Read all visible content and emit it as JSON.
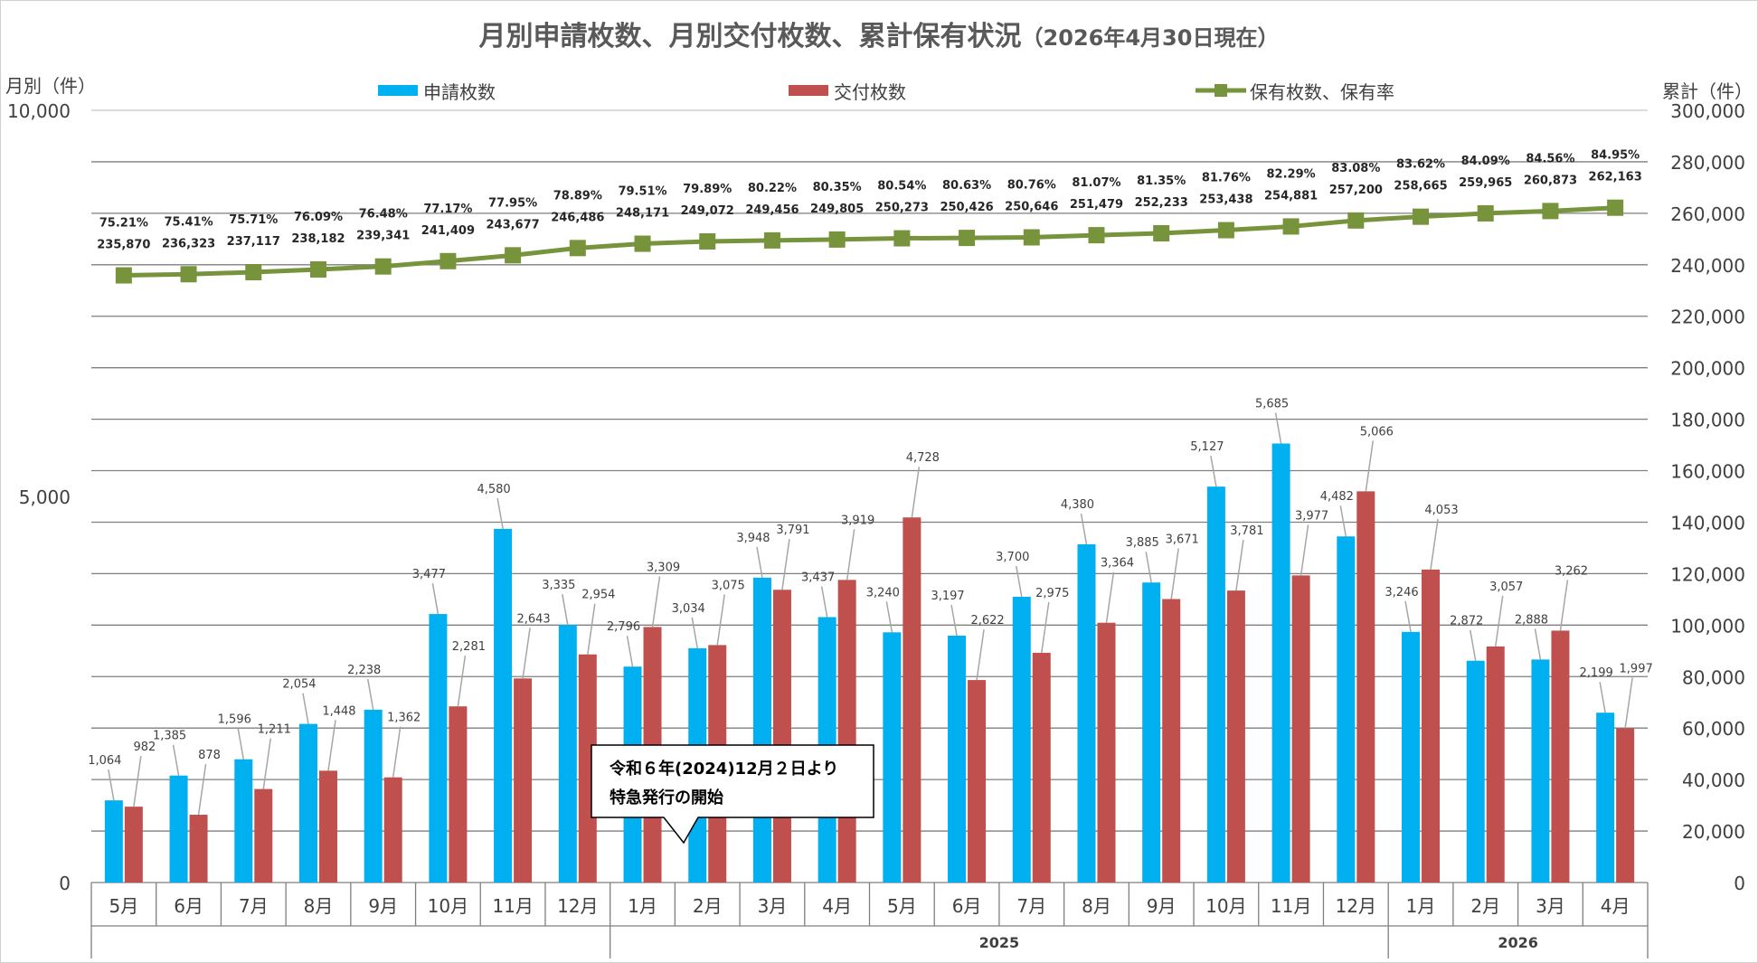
{
  "chart_data": {
    "type": "bar",
    "title": "月別申請枚数、月別交付枚数、累計保有状況",
    "title_suffix": "（2026年4月30日現在）",
    "ylabel_left": "月別（件）",
    "ylabel_right": "累計（件）",
    "ylim_left": [
      0,
      10000
    ],
    "ylim_right": [
      0,
      300000
    ],
    "yticks_left": [
      "0",
      "5,000",
      "10,000"
    ],
    "yticks_right": [
      "0",
      "20,000",
      "40,000",
      "60,000",
      "80,000",
      "100,000",
      "120,000",
      "140,000",
      "160,000",
      "180,000",
      "200,000",
      "220,000",
      "240,000",
      "260,000",
      "280,000",
      "300,000"
    ],
    "categories": [
      "5月",
      "6月",
      "7月",
      "8月",
      "9月",
      "10月",
      "11月",
      "12月",
      "1月",
      "2月",
      "3月",
      "4月",
      "5月",
      "6月",
      "7月",
      "8月",
      "9月",
      "10月",
      "11月",
      "12月",
      "1月",
      "2月",
      "3月",
      "4月"
    ],
    "year_groups": [
      {
        "label": "",
        "start": 0,
        "end": 7
      },
      {
        "label": "2025",
        "start": 8,
        "end": 19
      },
      {
        "label": "2026",
        "start": 20,
        "end": 23
      }
    ],
    "legend": [
      "申請枚数",
      "交付枚数",
      "保有枚数、保有率"
    ],
    "legend_position": "top",
    "grid": true,
    "colors": {
      "applications": "#00b0f0",
      "issued": "#c0504d",
      "holdings": "#77933c",
      "grid": "#7f7f7f",
      "text": "#404040"
    },
    "series": [
      {
        "name": "申請枚数",
        "axis": "left",
        "values": [
          1064,
          1385,
          1596,
          2054,
          2238,
          3477,
          4580,
          3335,
          2796,
          3034,
          3948,
          3437,
          3240,
          3197,
          3700,
          4380,
          3885,
          5127,
          5685,
          4482,
          3246,
          2872,
          2888,
          2199
        ],
        "labels": [
          "1,064",
          "1,385",
          "1,596",
          "2,054",
          "2,238",
          "3,477",
          "4,580",
          "3,335",
          "2,796",
          "3,034",
          "3,948",
          "3,437",
          "3,240",
          "3,197",
          "3,700",
          "4,380",
          "3,885",
          "5,127",
          "5,685",
          "4,482",
          "3,246",
          "2,872",
          "2,888",
          "2,199"
        ]
      },
      {
        "name": "交付枚数",
        "axis": "left",
        "values": [
          982,
          878,
          1211,
          1448,
          1362,
          2281,
          2643,
          2954,
          3309,
          3075,
          3791,
          3919,
          4728,
          2622,
          2975,
          3364,
          3671,
          3781,
          3977,
          5066,
          4053,
          3057,
          3262,
          1997
        ],
        "labels": [
          "982",
          "878",
          "1,211",
          "1,448",
          "1,362",
          "2,281",
          "2,643",
          "2,954",
          "3,309",
          "3,075",
          "3,791",
          "3,919",
          "4,728",
          "2,622",
          "2,975",
          "3,364",
          "3,671",
          "3,781",
          "3,977",
          "5,066",
          "4,053",
          "3,057",
          "3,262",
          "1,997"
        ]
      },
      {
        "name": "保有枚数、保有率",
        "axis": "right",
        "values": [
          235870,
          236323,
          237117,
          238182,
          239341,
          241409,
          243677,
          246486,
          248171,
          249072,
          249456,
          249805,
          250273,
          250426,
          250646,
          251479,
          252233,
          253438,
          254881,
          257200,
          258665,
          259965,
          260873,
          262163
        ],
        "labels": [
          "235,870",
          "236,323",
          "237,117",
          "238,182",
          "239,341",
          "241,409",
          "243,677",
          "246,486",
          "248,171",
          "249,072",
          "249,456",
          "249,805",
          "250,273",
          "250,426",
          "250,646",
          "251,479",
          "252,233",
          "253,438",
          "254,881",
          "257,200",
          "258,665",
          "259,965",
          "260,873",
          "262,163"
        ],
        "rates": [
          "75.21%",
          "75.41%",
          "75.71%",
          "76.09%",
          "76.48%",
          "77.17%",
          "77.95%",
          "78.89%",
          "79.51%",
          "79.89%",
          "80.22%",
          "80.35%",
          "80.54%",
          "80.63%",
          "80.76%",
          "81.07%",
          "81.35%",
          "81.76%",
          "82.29%",
          "83.08%",
          "83.62%",
          "84.09%",
          "84.56%",
          "84.95%"
        ]
      }
    ],
    "annotation": [
      "令和６年(2024)12月２日より",
      "特急発行の開始"
    ]
  }
}
